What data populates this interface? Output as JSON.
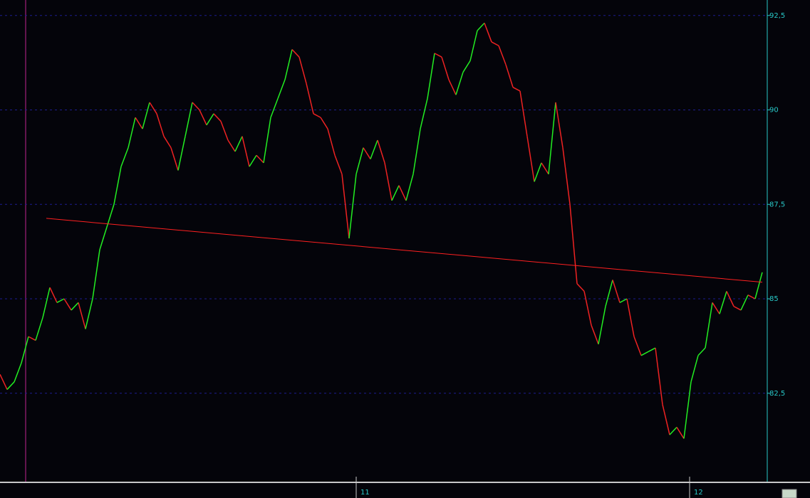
{
  "chart_data": {
    "type": "line",
    "x": [
      0,
      1,
      2,
      3,
      4,
      5,
      6,
      7,
      8,
      9,
      10,
      11,
      12,
      13,
      14,
      15,
      16,
      17,
      18,
      19,
      20,
      21,
      22,
      23,
      24,
      25,
      26,
      27,
      28,
      29,
      30,
      31,
      32,
      33,
      34,
      35,
      36,
      37,
      38,
      39,
      40,
      41,
      42,
      43,
      44,
      45,
      46,
      47,
      48,
      49,
      50,
      51,
      52,
      53,
      54,
      55,
      56,
      57,
      58,
      59,
      60,
      61,
      62,
      63,
      64,
      65,
      66,
      67,
      68,
      69,
      70,
      71,
      72,
      73,
      74,
      75,
      76,
      77,
      78,
      79,
      80,
      81,
      82,
      83,
      84,
      85,
      86,
      87,
      88,
      89,
      90,
      91,
      92,
      93,
      94,
      95,
      96,
      97,
      98,
      99,
      100,
      101,
      102,
      103,
      104,
      105,
      106,
      107
    ],
    "values": [
      83.0,
      82.6,
      82.8,
      83.3,
      84.0,
      83.9,
      84.5,
      85.3,
      84.9,
      85.0,
      84.7,
      84.9,
      84.2,
      85.0,
      86.3,
      86.9,
      87.5,
      88.5,
      89.0,
      89.8,
      89.5,
      90.2,
      89.9,
      89.3,
      89.0,
      88.4,
      89.3,
      90.2,
      90.0,
      89.6,
      89.9,
      89.7,
      89.2,
      88.9,
      89.3,
      88.5,
      88.8,
      88.6,
      89.8,
      90.3,
      90.8,
      91.6,
      91.4,
      90.7,
      89.9,
      89.8,
      89.5,
      88.8,
      88.3,
      86.6,
      88.3,
      89.0,
      88.7,
      89.2,
      88.6,
      87.6,
      88.0,
      87.6,
      88.3,
      89.5,
      90.3,
      91.5,
      91.4,
      90.8,
      90.4,
      91.0,
      91.3,
      92.1,
      92.3,
      91.8,
      91.7,
      91.2,
      90.6,
      90.5,
      89.3,
      88.1,
      88.6,
      88.3,
      90.2,
      89.0,
      87.5,
      85.4,
      85.2,
      84.3,
      83.8,
      84.8,
      85.5,
      84.9,
      85.0,
      84.0,
      83.5,
      83.6,
      83.7,
      82.2,
      81.4,
      81.6,
      81.3,
      82.8,
      83.5,
      83.7,
      84.9,
      84.6,
      85.2,
      84.8,
      84.7,
      85.1,
      85.0,
      85.7
    ],
    "up_color": "#22ee22",
    "down_color": "#ee2222",
    "trendline": {
      "x": [
        6.5,
        107
      ],
      "y": [
        87.13,
        85.44
      ],
      "color": "#ff2020"
    },
    "xlim": [
      0,
      107.7
    ],
    "xticks": [
      {
        "value": 50,
        "label": "11"
      },
      {
        "value": 96.8,
        "label": "12"
      }
    ],
    "ylim": [
      80.16,
      92.91
    ],
    "yticks": [
      {
        "value": 82.5,
        "label": "82,5"
      },
      85,
      {
        "value": 87.5,
        "label": "87,5"
      },
      90,
      {
        "value": 92.5,
        "label": "92,5"
      }
    ],
    "grid": true
  }
}
